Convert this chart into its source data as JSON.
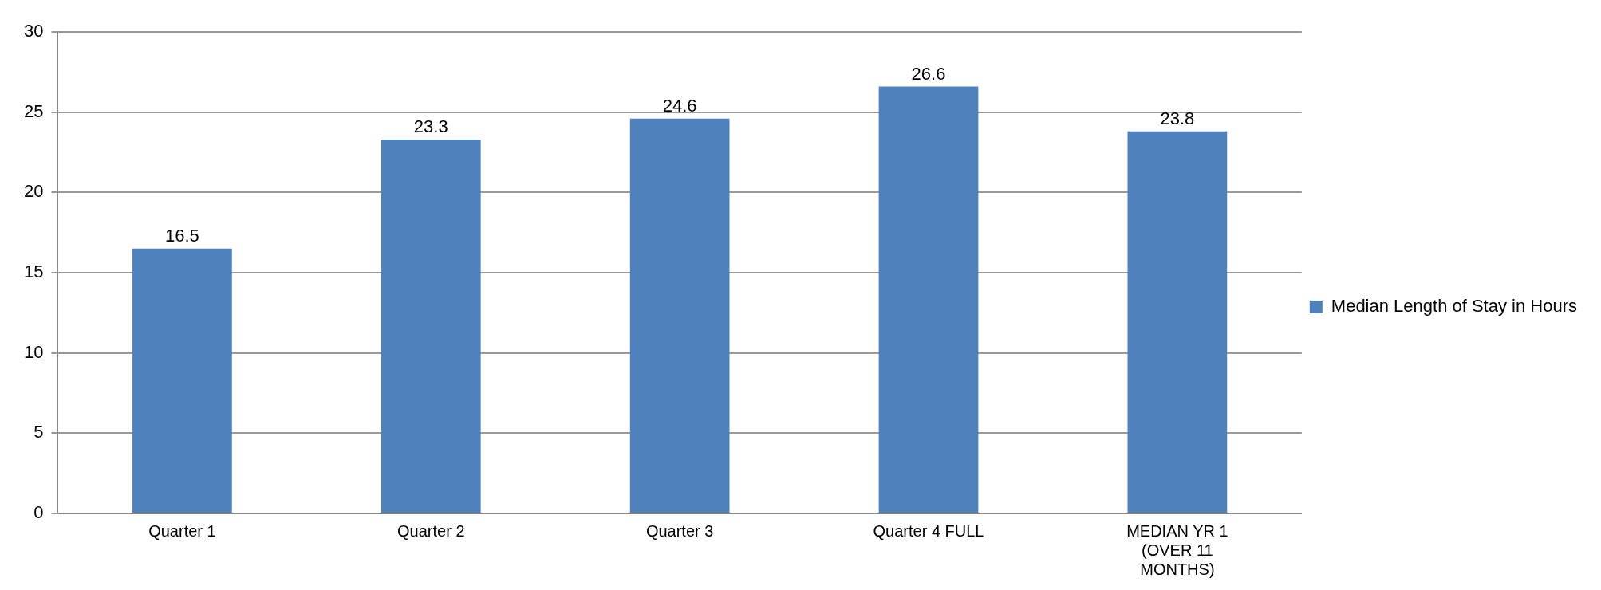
{
  "chart_data": {
    "type": "bar",
    "categories": [
      "Quarter 1",
      "Quarter 2",
      "Quarter 3",
      "Quarter 4 FULL",
      "MEDIAN YR 1 (OVER 11 MONTHS)"
    ],
    "series": [
      {
        "name": "Median Length of Stay in Hours",
        "color": "#4f81bd",
        "values": [
          16.5,
          23.3,
          24.6,
          26.6,
          23.8
        ]
      }
    ],
    "ylim": [
      0,
      30
    ],
    "yticks": [
      0,
      5,
      10,
      15,
      20,
      25,
      30
    ],
    "grid": "y",
    "legend": "right",
    "data_labels": true
  }
}
